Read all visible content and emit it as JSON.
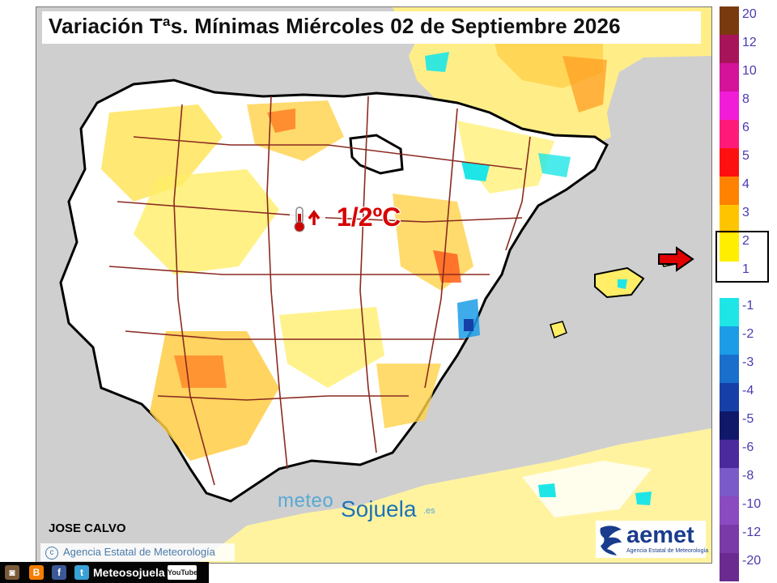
{
  "title": "Variación Tªs. Mínimas Miércoles 02 de Septiembre 2026",
  "callout": {
    "value_label": "1/2ºC",
    "icon": "thermometer-up-arrow-icon"
  },
  "author": "JOSE CALVO",
  "copyright": {
    "symbol": "c",
    "text": "Agencia Estatal de Meteorología"
  },
  "brand": {
    "part1": "meteo",
    "part2": "Sojuela",
    "part3": ".es"
  },
  "logo": {
    "word": "aemet",
    "subtitle": "Agencia Estatal de Meteorología"
  },
  "social": {
    "icons": [
      "instagram-icon",
      "blogger-icon",
      "facebook-icon",
      "twitter-icon"
    ],
    "icon_glyphs": [
      "◙",
      "B",
      "f",
      "t"
    ],
    "icon_colors": [
      "#7a5a3a",
      "#f57d00",
      "#3b5998",
      "#38a1d6"
    ],
    "handle": "Meteosojuela",
    "youtube_label": "YouTube"
  },
  "legend": {
    "positive": [
      {
        "label": "20",
        "color": "#7a3a10"
      },
      {
        "label": "12",
        "color": "#a8145a"
      },
      {
        "label": "10",
        "color": "#d4129a"
      },
      {
        "label": "8",
        "color": "#f01cd8"
      },
      {
        "label": "6",
        "color": "#ff1a7a"
      },
      {
        "label": "5",
        "color": "#ff1010"
      },
      {
        "label": "4",
        "color": "#ff8200"
      },
      {
        "label": "3",
        "color": "#ffc400"
      },
      {
        "label": "2",
        "color": "#ffee00"
      },
      {
        "label": "1",
        "color": "#ffffff"
      }
    ],
    "negative": [
      {
        "label": "-1",
        "color": "#1ee6e6"
      },
      {
        "label": "-2",
        "color": "#1c9ce6"
      },
      {
        "label": "-3",
        "color": "#1a6ecc"
      },
      {
        "label": "-4",
        "color": "#1640a8"
      },
      {
        "label": "-5",
        "color": "#10186a"
      },
      {
        "label": "-6",
        "color": "#4a2a9c"
      },
      {
        "label": "-8",
        "color": "#7a5ac8"
      },
      {
        "label": "-10",
        "color": "#8a4ac0"
      },
      {
        "label": "-12",
        "color": "#7a3aa8"
      },
      {
        "label": "-20",
        "color": "#6a2a90"
      }
    ],
    "highlighted_range": [
      "1",
      "2"
    ]
  }
}
